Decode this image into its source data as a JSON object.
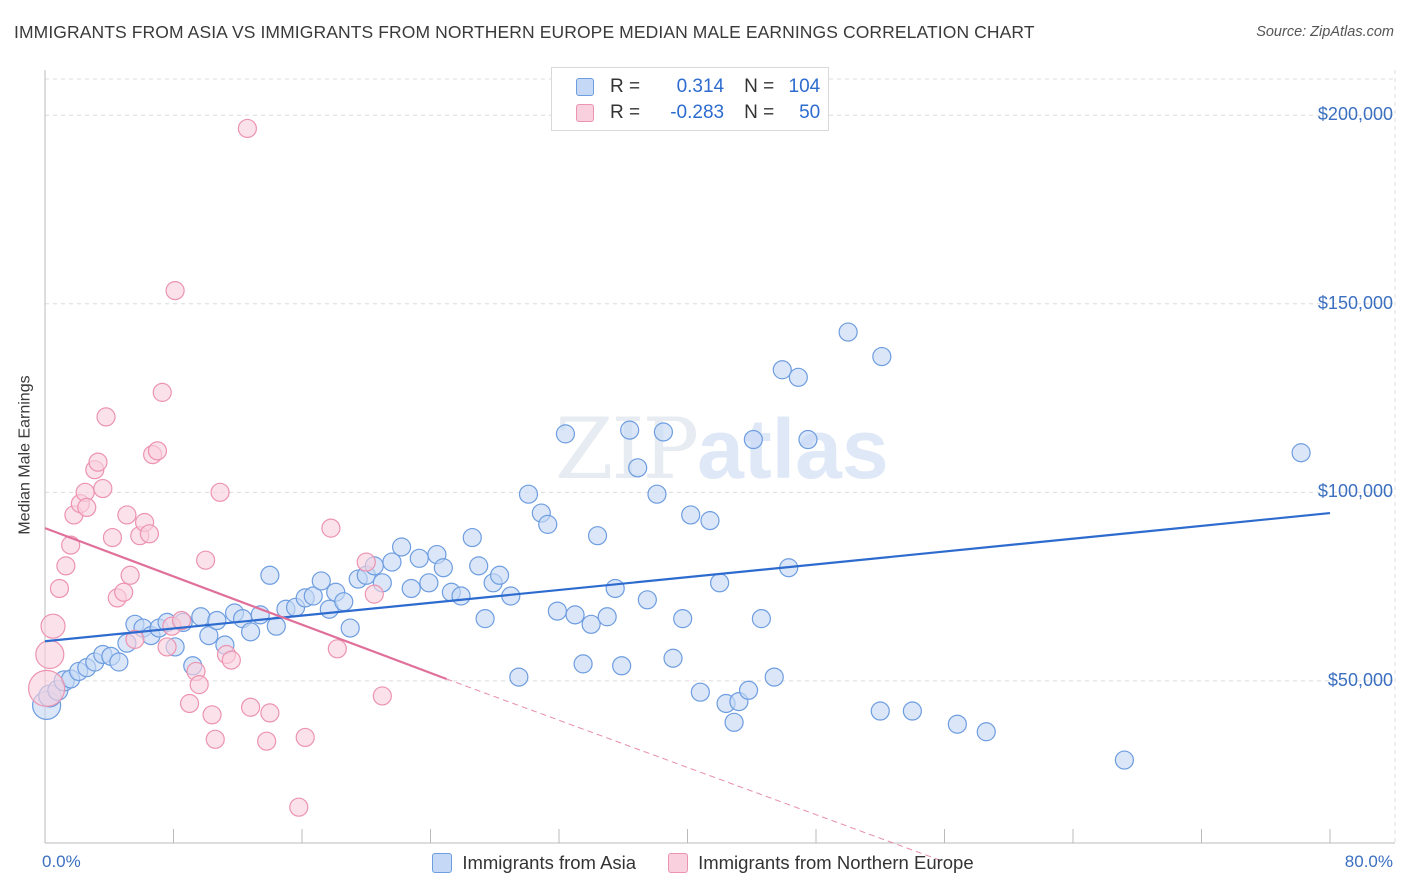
{
  "title": "IMMIGRANTS FROM ASIA VS IMMIGRANTS FROM NORTHERN EUROPE MEDIAN MALE EARNINGS CORRELATION CHART",
  "source": "Source: ZipAtlas.com",
  "watermark": {
    "zip": "ZIP",
    "atlas": "atlas"
  },
  "legend_top": {
    "rows": [
      {
        "r_label": "R =",
        "r_value": "0.314",
        "n_label": "N =",
        "n_value": "104"
      },
      {
        "r_label": "R =",
        "r_value": "-0.283",
        "n_label": "N =",
        "n_value": "50"
      }
    ]
  },
  "colors": {
    "asia_fill": "#c5d8f6",
    "asia_stroke": "#6e9de0",
    "asia_line": "#2d6bcf",
    "europe_fill": "#f9d0dd",
    "europe_stroke": "#ec93b0",
    "europe_line": "#e0709a",
    "axis_text": "#3b6fc0",
    "grid": "#dcdcdc"
  },
  "chart_data": {
    "type": "scatter",
    "title": "IMMIGRANTS FROM ASIA VS IMMIGRANTS FROM NORTHERN EUROPE MEDIAN MALE EARNINGS CORRELATION CHART",
    "xlabel": "",
    "ylabel": "Median Male Earnings",
    "xlim": [
      0,
      80
    ],
    "ylim": [
      7000,
      212000
    ],
    "x_tick_labels": [
      "0.0%",
      "80.0%"
    ],
    "y_ticks": [
      50000,
      100000,
      150000,
      200000
    ],
    "y_tick_labels": [
      "$50,000",
      "$100,000",
      "$150,000",
      "$200,000"
    ],
    "grid": true,
    "legend_position": "bottom",
    "series": [
      {
        "name": "Immigrants from Asia",
        "r": 0.314,
        "n": 104,
        "trend": [
          [
            0,
            60500
          ],
          [
            80,
            94500
          ]
        ],
        "points": [
          [
            0.1,
            43500,
            14
          ],
          [
            0.3,
            46000,
            11
          ],
          [
            0.8,
            47500,
            10
          ],
          [
            1.2,
            50000,
            10
          ],
          [
            1.6,
            50500,
            9
          ],
          [
            2.1,
            52500,
            9
          ],
          [
            2.6,
            53500,
            9
          ],
          [
            3.1,
            55000,
            9
          ],
          [
            3.6,
            57000,
            9
          ],
          [
            4.1,
            56500,
            9
          ],
          [
            4.6,
            55000,
            9
          ],
          [
            5.1,
            60000,
            9
          ],
          [
            5.6,
            65000,
            9
          ],
          [
            6.1,
            64000,
            9
          ],
          [
            6.6,
            62000,
            9
          ],
          [
            7.1,
            64000,
            9
          ],
          [
            7.6,
            65500,
            9
          ],
          [
            8.1,
            59000,
            9
          ],
          [
            8.6,
            65500,
            9
          ],
          [
            9.2,
            54000,
            9
          ],
          [
            9.7,
            67000,
            9
          ],
          [
            10.2,
            62000,
            9
          ],
          [
            10.7,
            66000,
            9
          ],
          [
            11.2,
            59500,
            9
          ],
          [
            11.8,
            68000,
            9
          ],
          [
            12.3,
            66500,
            9
          ],
          [
            12.8,
            63000,
            9
          ],
          [
            13.4,
            67500,
            9
          ],
          [
            14.0,
            78000,
            9
          ],
          [
            14.4,
            64500,
            9
          ],
          [
            15.0,
            69000,
            9
          ],
          [
            15.6,
            69500,
            9
          ],
          [
            16.2,
            72000,
            9
          ],
          [
            16.7,
            72500,
            9
          ],
          [
            17.2,
            76500,
            9
          ],
          [
            17.7,
            69000,
            9
          ],
          [
            18.1,
            73500,
            9
          ],
          [
            18.6,
            71000,
            9
          ],
          [
            19.0,
            64000,
            9
          ],
          [
            19.5,
            77000,
            9
          ],
          [
            20.0,
            78000,
            9
          ],
          [
            20.5,
            80500,
            9
          ],
          [
            21.0,
            76000,
            9
          ],
          [
            21.6,
            81500,
            9
          ],
          [
            22.2,
            85500,
            9
          ],
          [
            22.8,
            74500,
            9
          ],
          [
            23.3,
            82500,
            9
          ],
          [
            23.9,
            76000,
            9
          ],
          [
            24.4,
            83500,
            9
          ],
          [
            24.8,
            80000,
            9
          ],
          [
            25.3,
            73500,
            9
          ],
          [
            25.9,
            72500,
            9
          ],
          [
            26.6,
            88000,
            9
          ],
          [
            27.0,
            80500,
            9
          ],
          [
            27.4,
            66500,
            9
          ],
          [
            27.9,
            76000,
            9
          ],
          [
            28.3,
            78000,
            9
          ],
          [
            29.0,
            72500,
            9
          ],
          [
            29.5,
            51000,
            9
          ],
          [
            30.1,
            99500,
            9
          ],
          [
            30.9,
            94500,
            9
          ],
          [
            31.3,
            91500,
            9
          ],
          [
            31.9,
            68500,
            9
          ],
          [
            32.4,
            115500,
            9
          ],
          [
            33.0,
            67500,
            9
          ],
          [
            33.5,
            54500,
            9
          ],
          [
            34.0,
            65000,
            9
          ],
          [
            34.4,
            88500,
            9
          ],
          [
            35.0,
            67000,
            9
          ],
          [
            35.5,
            74500,
            9
          ],
          [
            35.9,
            54000,
            9
          ],
          [
            36.4,
            116500,
            9
          ],
          [
            36.9,
            106500,
            9
          ],
          [
            37.5,
            71500,
            9
          ],
          [
            38.1,
            99500,
            9
          ],
          [
            38.5,
            116000,
            9
          ],
          [
            39.1,
            56000,
            9
          ],
          [
            39.7,
            66500,
            9
          ],
          [
            40.2,
            94000,
            9
          ],
          [
            40.8,
            47000,
            9
          ],
          [
            41.4,
            92500,
            9
          ],
          [
            42.0,
            76000,
            9
          ],
          [
            42.4,
            44000,
            9
          ],
          [
            42.9,
            39000,
            9
          ],
          [
            43.2,
            44500,
            9
          ],
          [
            43.8,
            47500,
            9
          ],
          [
            44.1,
            114000,
            9
          ],
          [
            44.6,
            66500,
            9
          ],
          [
            45.4,
            51000,
            9
          ],
          [
            45.9,
            132500,
            9
          ],
          [
            46.3,
            80000,
            9
          ],
          [
            46.9,
            130500,
            9
          ],
          [
            47.5,
            114000,
            9
          ],
          [
            50.0,
            142500,
            9
          ],
          [
            52.0,
            42000,
            9
          ],
          [
            52.1,
            136000,
            9
          ],
          [
            54.0,
            42000,
            9
          ],
          [
            56.8,
            38500,
            9
          ],
          [
            58.6,
            36500,
            9
          ],
          [
            67.2,
            29000,
            9
          ],
          [
            78.2,
            110500,
            9
          ]
        ]
      },
      {
        "name": "Immigrants from Northern Europe",
        "r": -0.283,
        "n": 50,
        "trend": [
          [
            0,
            90500
          ],
          [
            25,
            50500
          ]
        ],
        "trend_dashed": [
          [
            25,
            50500
          ],
          [
            56,
            2000
          ]
        ],
        "points": [
          [
            0.1,
            48000,
            18
          ],
          [
            0.3,
            57000,
            14
          ],
          [
            0.5,
            64500,
            12
          ],
          [
            0.9,
            74500,
            9
          ],
          [
            1.3,
            80500,
            9
          ],
          [
            1.6,
            86000,
            9
          ],
          [
            1.8,
            94000,
            9
          ],
          [
            2.2,
            97000,
            9
          ],
          [
            2.5,
            100000,
            9
          ],
          [
            2.6,
            96000,
            9
          ],
          [
            3.1,
            106000,
            9
          ],
          [
            3.3,
            108000,
            9
          ],
          [
            3.6,
            101000,
            9
          ],
          [
            3.8,
            120000,
            9
          ],
          [
            4.2,
            88000,
            9
          ],
          [
            4.5,
            72000,
            9
          ],
          [
            4.9,
            73500,
            9
          ],
          [
            5.1,
            94000,
            9
          ],
          [
            5.3,
            78000,
            9
          ],
          [
            5.6,
            61000,
            9
          ],
          [
            5.9,
            88500,
            9
          ],
          [
            6.2,
            92000,
            9
          ],
          [
            6.5,
            89000,
            9
          ],
          [
            6.7,
            110000,
            9
          ],
          [
            7.0,
            111000,
            9
          ],
          [
            7.3,
            126500,
            9
          ],
          [
            7.6,
            59000,
            9
          ],
          [
            7.9,
            64500,
            9
          ],
          [
            8.1,
            153500,
            9
          ],
          [
            8.5,
            66000,
            9
          ],
          [
            9.0,
            44000,
            9
          ],
          [
            9.4,
            52500,
            9
          ],
          [
            9.6,
            49000,
            9
          ],
          [
            10.0,
            82000,
            9
          ],
          [
            10.4,
            41000,
            9
          ],
          [
            10.6,
            34500,
            9
          ],
          [
            10.9,
            100000,
            9
          ],
          [
            11.3,
            57000,
            9
          ],
          [
            11.6,
            55500,
            9
          ],
          [
            12.6,
            196500,
            9
          ],
          [
            12.8,
            43000,
            9
          ],
          [
            13.8,
            34000,
            9
          ],
          [
            14.0,
            41500,
            9
          ],
          [
            15.8,
            16500,
            9
          ],
          [
            16.2,
            35000,
            9
          ],
          [
            17.8,
            90500,
            9
          ],
          [
            18.2,
            58500,
            9
          ],
          [
            20.0,
            81500,
            9
          ],
          [
            20.5,
            73000,
            9
          ],
          [
            21.0,
            46000,
            9
          ]
        ]
      }
    ]
  }
}
